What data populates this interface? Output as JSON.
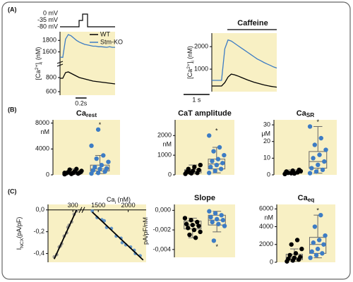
{
  "chart_data": [
    {
      "type": "line",
      "panel": "(A)",
      "protocol": [
        "0 mV",
        "-35 mV",
        "-80 mV"
      ],
      "ylabel": [
        {
          "text": "[Ca"
        },
        {
          "text": "2+",
          "sup": true
        },
        {
          "text": "]"
        },
        {
          "text": "i",
          "sub": true
        },
        {
          "text": " (nM)"
        }
      ],
      "x": [
        0,
        0.05,
        0.1,
        0.15,
        0.2,
        0.25,
        0.3,
        0.35,
        0.4,
        0.45,
        0.5,
        0.55,
        0.6,
        0.65,
        0.7,
        0.75,
        0.8,
        0.85,
        0.9,
        0.95,
        1.0
      ],
      "xlim": [
        0,
        1.0
      ],
      "ylim": [
        550,
        950
      ],
      "yticks": [
        600,
        800
      ],
      "y2lim": [
        1400,
        1950
      ],
      "y2ticks": [
        1600,
        1800
      ],
      "scalebar": {
        "label": "0.2s",
        "length": 0.2
      },
      "legend": "upper right",
      "series": [
        {
          "name": "WT",
          "color": "#000000",
          "axis": "y",
          "values": [
            790,
            790,
            870,
            880,
            860,
            840,
            820,
            800,
            790,
            780,
            770,
            760,
            750,
            745,
            740,
            735,
            730,
            725,
            720,
            715,
            710
          ]
        },
        {
          "name": "Stm-KO",
          "color": "#3d7cc4",
          "axis": "y2",
          "values": [
            1510,
            1505,
            1820,
            1900,
            1880,
            1840,
            1800,
            1770,
            1750,
            1730,
            1720,
            1710,
            1700,
            1700,
            1690,
            1690,
            1685,
            1680,
            1690,
            1680,
            1680
          ]
        }
      ]
    },
    {
      "type": "line",
      "annotation": "Caffeine",
      "ylabel": [
        {
          "text": "[Ca"
        },
        {
          "text": "2+",
          "sup": true
        },
        {
          "text": "]"
        },
        {
          "text": "i",
          "sub": true
        },
        {
          "text": " (nM)"
        }
      ],
      "x": [
        0,
        0.125,
        0.25,
        0.375,
        0.5,
        0.625,
        0.75,
        0.875,
        1.0,
        1.125,
        1.25,
        1.375,
        1.5,
        1.625,
        1.75,
        1.875,
        2.0,
        2.125,
        2.25,
        2.375,
        2.5
      ],
      "xlim": [
        0,
        2.5
      ],
      "ylim": [
        0,
        2600
      ],
      "yticks": [
        1000,
        2000
      ],
      "scalebar": {
        "label": "1 s",
        "length": 1
      },
      "series": [
        {
          "color": "#3d7cc4",
          "values": [
            500,
            500,
            500,
            500,
            1900,
            2300,
            2250,
            2150,
            2050,
            1950,
            1850,
            1750,
            1650,
            1550,
            1450,
            1380,
            1300,
            1230,
            1170,
            1100,
            1050
          ]
        },
        {
          "color": "#000000",
          "values": [
            250,
            250,
            250,
            250,
            400,
            650,
            780,
            750,
            700,
            640,
            580,
            520,
            470,
            420,
            380,
            340,
            300,
            270,
            240,
            220,
            200
          ]
        }
      ]
    },
    {
      "type": "box",
      "panel": "(B)",
      "title": [
        {
          "text": "Ca"
        },
        {
          "text": "rest",
          "sub": true
        }
      ],
      "unit": "nM",
      "annotation": "*",
      "annotation_position": "top",
      "ylim": [
        0,
        8500
      ],
      "yticks": [
        0,
        4000,
        8000
      ],
      "series": [
        {
          "color": "#000000",
          "points": [
            100,
            150,
            200,
            250,
            300,
            350,
            400,
            500,
            600,
            800,
            900,
            300
          ],
          "box": {
            "min": 50,
            "q1": 180,
            "median": 300,
            "q3": 500,
            "max": 900
          }
        },
        {
          "color": "#3d7cc4",
          "points": [
            200,
            300,
            500,
            700,
            900,
            1000,
            1200,
            1500,
            2000,
            2500,
            3000,
            4500,
            7000
          ],
          "box": {
            "min": 200,
            "q1": 600,
            "median": 900,
            "q3": 1500,
            "max": 3000
          }
        }
      ]
    },
    {
      "type": "box",
      "title": [
        {
          "text": "CaT amplitude"
        }
      ],
      "unit": "nM",
      "annotation": "*",
      "annotation_position": "top",
      "ylim": [
        0,
        2800
      ],
      "yticks": [
        0,
        1000,
        2000
      ],
      "series": [
        {
          "color": "#000000",
          "points": [
            50,
            80,
            100,
            150,
            200,
            250,
            300,
            400,
            500,
            120
          ],
          "box": {
            "min": 50,
            "q1": 100,
            "median": 160,
            "q3": 260,
            "max": 500
          }
        },
        {
          "color": "#3d7cc4",
          "points": [
            100,
            200,
            300,
            400,
            500,
            600,
            700,
            800,
            1000,
            1200,
            1400,
            2000
          ],
          "box": {
            "min": 100,
            "q1": 300,
            "median": 550,
            "q3": 800,
            "max": 1400
          }
        }
      ]
    },
    {
      "type": "box",
      "title": [
        {
          "text": "Ca"
        },
        {
          "text": "SR",
          "sub": true
        }
      ],
      "unit": "μM",
      "annotation": "*",
      "annotation_position": "top",
      "ylim": [
        0,
        33
      ],
      "yticks": [
        0,
        10,
        20,
        30
      ],
      "series": [
        {
          "color": "#000000",
          "points": [
            0.5,
            1,
            1.5,
            2,
            2.5,
            3,
            1.2,
            0.8,
            2.2
          ],
          "box": {
            "min": 0.5,
            "q1": 1,
            "median": 1.5,
            "q3": 2.2,
            "max": 3
          }
        },
        {
          "color": "#3d7cc4",
          "points": [
            1,
            2,
            3,
            4,
            6,
            8,
            10,
            12,
            15,
            18,
            22,
            29
          ],
          "box": {
            "min": 1,
            "q1": 4,
            "median": 8,
            "q3": 14,
            "max": 29
          }
        }
      ]
    },
    {
      "type": "scatter",
      "panel": "(C)",
      "ylabel": [
        {
          "text": "I"
        },
        {
          "text": "NCX",
          "sub": true
        },
        {
          "text": "(pA/pF)"
        }
      ],
      "xlabel": [
        {
          "text": "Ca"
        },
        {
          "text": "i",
          "sub": true
        },
        {
          "text": " (nM)"
        }
      ],
      "xlim": [
        100,
        350
      ],
      "xticks": [
        300
      ],
      "x2lim": [
        1250,
        2300
      ],
      "x2ticks": [
        1500,
        2000
      ],
      "ylim": [
        -0.48,
        0.05
      ],
      "yticks": [
        {
          "value": 0,
          "label": "0,0"
        },
        {
          "value": -0.2,
          "label": "-0,2"
        },
        {
          "value": -0.4,
          "label": "-0,4"
        }
      ],
      "series": [
        {
          "color": "#8c8c8c",
          "axis": "x",
          "x": [
            150,
            170,
            190,
            210,
            230,
            250,
            270,
            290,
            310,
            330,
            200,
            260
          ],
          "values": [
            -0.43,
            -0.41,
            -0.34,
            -0.31,
            -0.24,
            -0.21,
            -0.14,
            -0.11,
            -0.04,
            -0.01,
            -0.33,
            -0.16
          ],
          "fit": {
            "x": [
              150,
              330
            ],
            "values": [
              -0.45,
              0
            ]
          }
        },
        {
          "color": "#4a86c8",
          "axis": "x2",
          "x": [
            1400,
            1480,
            1560,
            1640,
            1720,
            1800,
            1880,
            1960,
            2040,
            2120,
            2200,
            1600,
            1900,
            2100
          ],
          "values": [
            -0.01,
            -0.07,
            -0.09,
            -0.16,
            -0.17,
            -0.24,
            -0.26,
            -0.32,
            -0.34,
            -0.4,
            -0.42,
            -0.1,
            -0.3,
            -0.37
          ],
          "fit": {
            "x": [
              1400,
              2250
            ],
            "values": [
              -0.02,
              -0.46
            ]
          }
        }
      ]
    },
    {
      "type": "box",
      "title": [
        {
          "text": "Slope"
        }
      ],
      "ylabel": [
        {
          "text": "pA/pF/nM"
        }
      ],
      "annotation": "*",
      "annotation_position": "bottom",
      "ylim": [
        -0.0048,
        0.0006
      ],
      "yticks": [
        {
          "value": 0,
          "label": "0,000"
        },
        {
          "value": -0.002,
          "label": "-0,002"
        },
        {
          "value": -0.004,
          "label": "-0,004"
        }
      ],
      "series": [
        {
          "color": "#000000",
          "points": [
            -0.0008,
            -0.001,
            -0.0012,
            -0.0014,
            -0.0015,
            -0.0016,
            -0.0018,
            -0.002,
            -0.0022,
            -0.0025,
            -0.0028
          ],
          "box": {
            "min": -0.0028,
            "q1": -0.0019,
            "median": -0.0015,
            "q3": -0.0011,
            "max": -0.0008
          }
        },
        {
          "color": "#3d7cc4",
          "points": [
            -0.0001,
            -0.0003,
            -0.0005,
            -0.0007,
            -0.0009,
            -0.001,
            -0.0012,
            -0.0014,
            -0.0016,
            -0.0031
          ],
          "box": {
            "min": -0.0022,
            "q1": -0.0015,
            "median": -0.001,
            "q3": -0.0005,
            "max": -0.0001
          }
        }
      ]
    },
    {
      "type": "box",
      "title": [
        {
          "text": "Ca"
        },
        {
          "text": "eq",
          "sub": true
        }
      ],
      "unit": "nM",
      "annotation": "*",
      "annotation_position": "top",
      "ylim": [
        0,
        6500
      ],
      "yticks": [
        0,
        2000,
        4000,
        6000
      ],
      "series": [
        {
          "color": "#000000",
          "points": [
            100,
            200,
            300,
            400,
            500,
            600,
            800,
            1000,
            1500,
            2000,
            2500
          ],
          "box": {
            "min": 100,
            "q1": 300,
            "median": 500,
            "q3": 900,
            "max": 1500
          }
        },
        {
          "color": "#3d7cc4",
          "points": [
            500,
            800,
            1000,
            1200,
            1500,
            2000,
            2200,
            2500,
            3000,
            4000,
            5300
          ],
          "box": {
            "min": 500,
            "q1": 1000,
            "median": 2000,
            "q3": 2800,
            "max": 5300
          }
        }
      ]
    }
  ]
}
